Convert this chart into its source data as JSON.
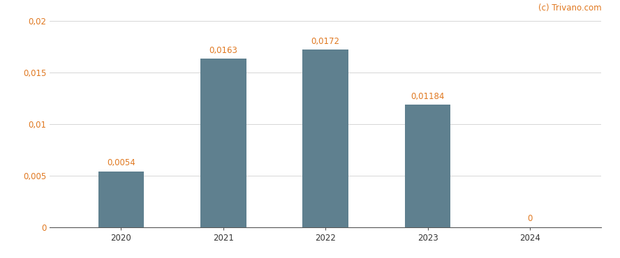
{
  "categories": [
    "2020",
    "2021",
    "2022",
    "2023",
    "2024"
  ],
  "values": [
    0.0054,
    0.0163,
    0.0172,
    0.01184,
    0
  ],
  "bar_labels": [
    "0,0054",
    "0,0163",
    "0,0172",
    "0,01184",
    "0"
  ],
  "bar_color": "#5f808f",
  "ylim": [
    0,
    0.02
  ],
  "yticks": [
    0,
    0.005,
    0.01,
    0.015,
    0.02
  ],
  "ytick_labels": [
    "0",
    "0,005",
    "0,01",
    "0,015",
    "0,02"
  ],
  "label_color": "#e07820",
  "ytick_color": "#e07820",
  "label_fontsize": 8.5,
  "tick_fontsize": 8.5,
  "xtick_fontsize": 8.5,
  "watermark": "(c) Trivano.com",
  "watermark_color": "#e07820",
  "background_color": "#ffffff",
  "grid_color": "#d0d0d0",
  "bar_width": 0.45
}
